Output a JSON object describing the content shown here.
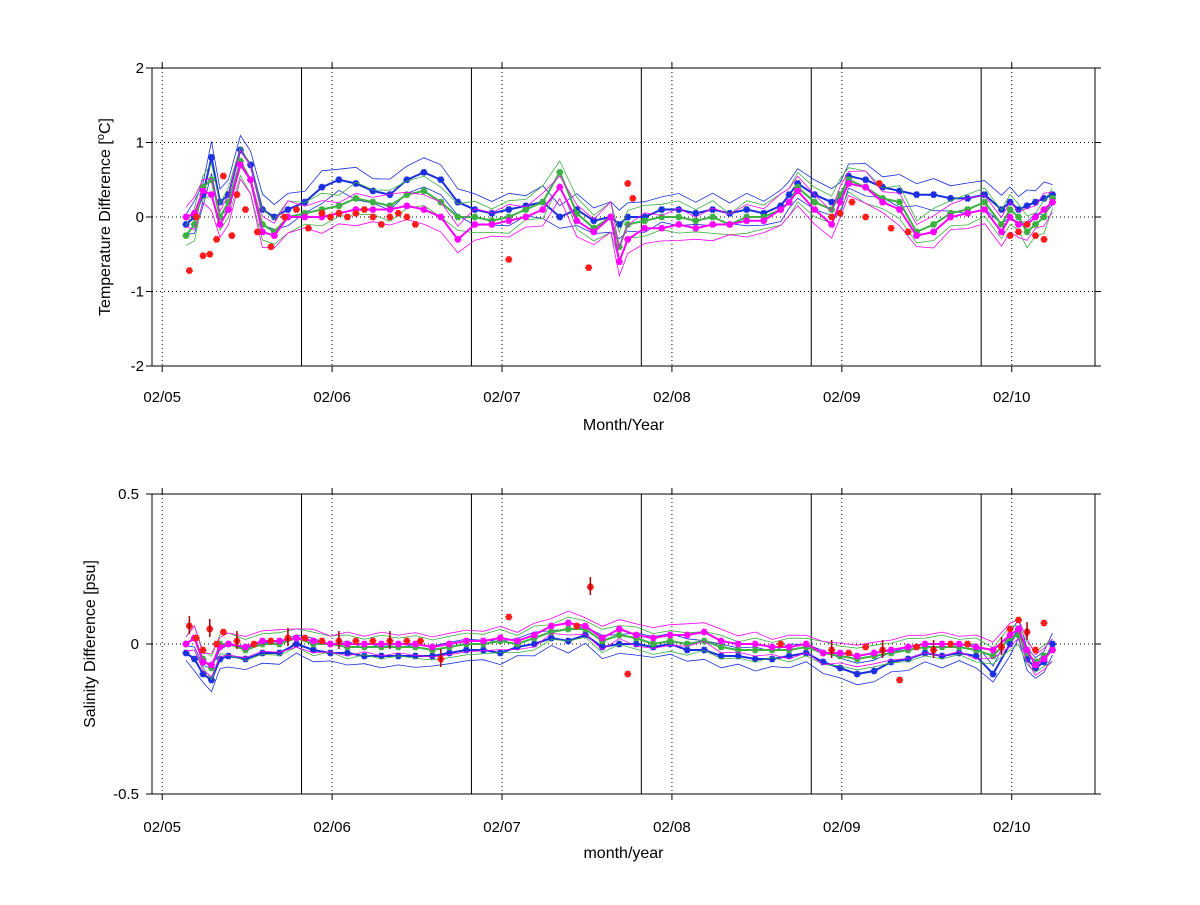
{
  "colors": {
    "blue": "#1a2fe0",
    "green": "#3cb043",
    "magenta": "#ff00ff",
    "red": "#ff1a1a",
    "darkred": "#a80000",
    "axis": "#000000"
  },
  "x_ticks": [
    "02/05",
    "02/06",
    "02/07",
    "02/08",
    "02/09",
    "02/10"
  ],
  "chart_data": [
    {
      "type": "line",
      "id": "temp",
      "title": "",
      "xlabel": "Month/Year",
      "ylabel": "Temperature Difference [",
      "ylabel_sup": "o",
      "ylabel_tail": "C]",
      "xlim": [
        2005.0,
        2010.55
      ],
      "ylim": [
        -2,
        2
      ],
      "yticks": [
        2,
        1,
        0,
        -1,
        -2
      ],
      "ytick_labels": [
        "2",
        "1",
        "0",
        "-1",
        "-2"
      ],
      "year_marks": [
        2005.88,
        2006.88,
        2007.88,
        2008.88,
        2009.88
      ],
      "grid": "dotted",
      "series": [
        {
          "color_key": "blue",
          "style": "marker-line",
          "x": [
            2005.2,
            2005.25,
            2005.3,
            2005.35,
            2005.4,
            2005.45,
            2005.52,
            2005.58,
            2005.65,
            2005.72,
            2005.8,
            2005.9,
            2006.0,
            2006.1,
            2006.2,
            2006.3,
            2006.4,
            2006.5,
            2006.6,
            2006.7,
            2006.8,
            2006.9,
            2007.0,
            2007.1,
            2007.2,
            2007.3,
            2007.4,
            2007.5,
            2007.6,
            2007.7,
            2007.75,
            2007.8,
            2007.9,
            2008.0,
            2008.1,
            2008.2,
            2008.3,
            2008.4,
            2008.5,
            2008.6,
            2008.7,
            2008.75,
            2008.8,
            2008.9,
            2009.0,
            2009.05,
            2009.1,
            2009.2,
            2009.3,
            2009.4,
            2009.5,
            2009.6,
            2009.7,
            2009.8,
            2009.9,
            2010.0,
            2010.05,
            2010.1,
            2010.15,
            2010.2,
            2010.25,
            2010.3
          ],
          "y": [
            -0.1,
            0.0,
            0.3,
            0.8,
            0.2,
            0.3,
            0.9,
            0.7,
            0.1,
            0.0,
            0.1,
            0.2,
            0.4,
            0.5,
            0.45,
            0.35,
            0.3,
            0.5,
            0.6,
            0.5,
            0.2,
            0.1,
            0.05,
            0.1,
            0.15,
            0.2,
            0.0,
            0.1,
            -0.05,
            0.0,
            -0.1,
            0.0,
            0.0,
            0.1,
            0.1,
            0.05,
            0.1,
            0.05,
            0.1,
            0.05,
            0.15,
            0.3,
            0.45,
            0.3,
            0.2,
            0.25,
            0.55,
            0.5,
            0.4,
            0.35,
            0.3,
            0.3,
            0.25,
            0.25,
            0.3,
            0.1,
            0.2,
            0.1,
            0.15,
            0.2,
            0.25,
            0.3
          ]
        },
        {
          "color_key": "green",
          "style": "marker-line",
          "x": [
            2005.2,
            2005.25,
            2005.3,
            2005.35,
            2005.4,
            2005.45,
            2005.52,
            2005.58,
            2005.65,
            2005.72,
            2005.8,
            2005.9,
            2006.0,
            2006.1,
            2006.2,
            2006.3,
            2006.4,
            2006.5,
            2006.6,
            2006.7,
            2006.8,
            2006.9,
            2007.0,
            2007.1,
            2007.2,
            2007.3,
            2007.4,
            2007.5,
            2007.6,
            2007.7,
            2007.75,
            2007.8,
            2007.9,
            2008.0,
            2008.1,
            2008.2,
            2008.3,
            2008.4,
            2008.5,
            2008.6,
            2008.7,
            2008.75,
            2008.8,
            2008.9,
            2009.0,
            2009.05,
            2009.1,
            2009.2,
            2009.3,
            2009.4,
            2009.5,
            2009.6,
            2009.7,
            2009.8,
            2009.9,
            2010.0,
            2010.05,
            2010.1,
            2010.15,
            2010.2,
            2010.25,
            2010.3
          ],
          "y": [
            -0.25,
            -0.1,
            0.4,
            0.5,
            0.0,
            0.2,
            0.75,
            0.5,
            -0.1,
            -0.2,
            0.0,
            0.05,
            0.1,
            0.15,
            0.25,
            0.2,
            0.15,
            0.3,
            0.35,
            0.2,
            0.0,
            0.0,
            -0.05,
            0.0,
            0.1,
            0.2,
            0.6,
            0.05,
            -0.15,
            0.0,
            -0.4,
            -0.1,
            -0.05,
            0.0,
            0.0,
            -0.05,
            0.0,
            -0.1,
            0.0,
            0.0,
            0.1,
            0.2,
            0.4,
            0.2,
            0.1,
            0.3,
            0.5,
            0.4,
            0.25,
            0.2,
            -0.2,
            -0.1,
            0.05,
            0.1,
            0.2,
            -0.1,
            0.1,
            0.0,
            -0.2,
            -0.1,
            0.0,
            0.25
          ]
        },
        {
          "color_key": "magenta",
          "style": "marker-line",
          "x": [
            2005.2,
            2005.25,
            2005.3,
            2005.35,
            2005.4,
            2005.45,
            2005.52,
            2005.58,
            2005.65,
            2005.72,
            2005.8,
            2005.9,
            2006.0,
            2006.1,
            2006.2,
            2006.3,
            2006.4,
            2006.5,
            2006.6,
            2006.7,
            2006.8,
            2006.9,
            2007.0,
            2007.1,
            2007.2,
            2007.3,
            2007.4,
            2007.5,
            2007.6,
            2007.7,
            2007.75,
            2007.8,
            2007.9,
            2008.0,
            2008.1,
            2008.2,
            2008.3,
            2008.4,
            2008.5,
            2008.6,
            2008.7,
            2008.75,
            2008.8,
            2008.9,
            2009.0,
            2009.05,
            2009.1,
            2009.2,
            2009.3,
            2009.4,
            2009.5,
            2009.6,
            2009.7,
            2009.8,
            2009.9,
            2010.0,
            2010.05,
            2010.1,
            2010.15,
            2010.2,
            2010.25,
            2010.3
          ],
          "y": [
            0.0,
            0.05,
            0.35,
            0.3,
            -0.1,
            0.1,
            0.7,
            0.5,
            -0.2,
            -0.25,
            0.0,
            0.0,
            0.0,
            0.05,
            0.1,
            0.1,
            0.1,
            0.15,
            0.1,
            0.0,
            -0.3,
            -0.1,
            -0.1,
            -0.05,
            0.0,
            0.1,
            0.4,
            -0.05,
            -0.2,
            0.0,
            -0.6,
            -0.3,
            -0.15,
            -0.15,
            -0.1,
            -0.15,
            -0.1,
            -0.1,
            -0.05,
            -0.05,
            0.1,
            0.2,
            0.35,
            0.1,
            -0.1,
            0.2,
            0.45,
            0.4,
            0.2,
            0.1,
            -0.25,
            -0.2,
            0.0,
            0.05,
            0.1,
            -0.2,
            0.0,
            -0.1,
            -0.1,
            0.0,
            0.1,
            0.2
          ]
        },
        {
          "color_key": "red",
          "style": "markers",
          "x": [
            2005.22,
            2005.26,
            2005.3,
            2005.34,
            2005.38,
            2005.42,
            2005.47,
            2005.5,
            2005.55,
            2005.62,
            2005.7,
            2005.78,
            2005.85,
            2005.92,
            2006.0,
            2006.05,
            2006.1,
            2006.15,
            2006.2,
            2006.25,
            2006.3,
            2006.35,
            2006.4,
            2006.45,
            2006.5,
            2006.55,
            2007.1,
            2007.57,
            2007.8,
            2007.83,
            2009.0,
            2009.05,
            2009.12,
            2009.2,
            2009.28,
            2009.35,
            2009.45,
            2010.05,
            2010.1,
            2010.15,
            2010.2,
            2010.25
          ],
          "y": [
            -0.72,
            0.0,
            -0.52,
            -0.5,
            -0.3,
            0.55,
            -0.25,
            0.3,
            0.1,
            -0.2,
            -0.4,
            0.0,
            0.1,
            -0.15,
            0.05,
            0.0,
            0.05,
            0.0,
            0.05,
            0.1,
            0.0,
            -0.1,
            0.0,
            0.05,
            0.0,
            -0.1,
            -0.57,
            -0.68,
            0.45,
            0.25,
            0.0,
            0.05,
            0.2,
            0.0,
            0.45,
            -0.15,
            -0.2,
            -0.25,
            -0.2,
            -0.1,
            -0.25,
            -0.3
          ]
        }
      ]
    },
    {
      "type": "line",
      "id": "salt",
      "title": "",
      "xlabel": "month/year",
      "ylabel": "Salinity Difference [psu]",
      "xlim": [
        2005.0,
        2010.55
      ],
      "ylim": [
        -0.5,
        0.5
      ],
      "yticks": [
        0.5,
        0,
        -0.5
      ],
      "ytick_labels": [
        "0.5",
        "0",
        "-0.5"
      ],
      "year_marks": [
        2005.88,
        2006.88,
        2007.88,
        2008.88,
        2009.88
      ],
      "grid": "dotted",
      "series": [
        {
          "color_key": "blue",
          "style": "marker-line",
          "x": [
            2005.2,
            2005.25,
            2005.3,
            2005.35,
            2005.4,
            2005.45,
            2005.55,
            2005.65,
            2005.75,
            2005.85,
            2005.95,
            2006.05,
            2006.15,
            2006.25,
            2006.35,
            2006.45,
            2006.55,
            2006.65,
            2006.75,
            2006.85,
            2006.95,
            2007.05,
            2007.15,
            2007.25,
            2007.35,
            2007.45,
            2007.55,
            2007.65,
            2007.75,
            2007.85,
            2007.95,
            2008.05,
            2008.15,
            2008.25,
            2008.35,
            2008.45,
            2008.55,
            2008.65,
            2008.75,
            2008.85,
            2008.95,
            2009.05,
            2009.15,
            2009.25,
            2009.35,
            2009.45,
            2009.55,
            2009.65,
            2009.75,
            2009.85,
            2009.95,
            2010.05,
            2010.1,
            2010.15,
            2010.2,
            2010.25,
            2010.3
          ],
          "y": [
            -0.03,
            -0.05,
            -0.1,
            -0.12,
            -0.05,
            -0.04,
            -0.05,
            -0.03,
            -0.03,
            0.0,
            -0.02,
            -0.03,
            -0.03,
            -0.04,
            -0.04,
            -0.04,
            -0.04,
            -0.04,
            -0.03,
            -0.02,
            -0.02,
            -0.03,
            -0.01,
            0.0,
            0.02,
            0.01,
            0.03,
            -0.01,
            0.0,
            0.0,
            -0.01,
            0.0,
            -0.02,
            -0.02,
            -0.04,
            -0.04,
            -0.05,
            -0.05,
            -0.04,
            -0.03,
            -0.06,
            -0.08,
            -0.1,
            -0.09,
            -0.06,
            -0.05,
            -0.03,
            -0.04,
            -0.03,
            -0.04,
            -0.1,
            0.0,
            0.05,
            -0.05,
            -0.08,
            -0.06,
            0.0
          ]
        },
        {
          "color_key": "green",
          "style": "marker-line",
          "x": [
            2005.2,
            2005.25,
            2005.3,
            2005.35,
            2005.4,
            2005.45,
            2005.55,
            2005.65,
            2005.75,
            2005.85,
            2005.95,
            2006.05,
            2006.15,
            2006.25,
            2006.35,
            2006.45,
            2006.55,
            2006.65,
            2006.75,
            2006.85,
            2006.95,
            2007.05,
            2007.15,
            2007.25,
            2007.35,
            2007.45,
            2007.55,
            2007.65,
            2007.75,
            2007.85,
            2007.95,
            2008.05,
            2008.15,
            2008.25,
            2008.35,
            2008.45,
            2008.55,
            2008.65,
            2008.75,
            2008.85,
            2008.95,
            2009.05,
            2009.15,
            2009.25,
            2009.35,
            2009.45,
            2009.55,
            2009.65,
            2009.75,
            2009.85,
            2009.95,
            2010.05,
            2010.1,
            2010.15,
            2010.2,
            2010.25,
            2010.3
          ],
          "y": [
            0.0,
            0.02,
            -0.05,
            -0.08,
            0.0,
            0.0,
            -0.02,
            0.0,
            0.0,
            0.02,
            0.0,
            0.0,
            -0.01,
            -0.01,
            -0.01,
            -0.01,
            -0.01,
            -0.02,
            -0.01,
            0.0,
            0.0,
            0.01,
            0.0,
            0.02,
            0.04,
            0.05,
            0.05,
            0.01,
            0.03,
            0.02,
            0.0,
            0.01,
            0.0,
            0.01,
            -0.01,
            -0.02,
            -0.02,
            -0.02,
            -0.02,
            -0.01,
            -0.03,
            -0.04,
            -0.05,
            -0.04,
            -0.03,
            -0.02,
            -0.01,
            -0.01,
            -0.01,
            -0.02,
            -0.04,
            0.02,
            0.03,
            -0.03,
            -0.06,
            -0.04,
            -0.02
          ]
        },
        {
          "color_key": "magenta",
          "style": "marker-line",
          "x": [
            2005.2,
            2005.25,
            2005.3,
            2005.35,
            2005.4,
            2005.45,
            2005.55,
            2005.65,
            2005.75,
            2005.85,
            2005.95,
            2006.05,
            2006.15,
            2006.25,
            2006.35,
            2006.45,
            2006.55,
            2006.65,
            2006.75,
            2006.85,
            2006.95,
            2007.05,
            2007.15,
            2007.25,
            2007.35,
            2007.45,
            2007.55,
            2007.65,
            2007.75,
            2007.85,
            2007.95,
            2008.05,
            2008.15,
            2008.25,
            2008.35,
            2008.45,
            2008.55,
            2008.65,
            2008.75,
            2008.85,
            2008.95,
            2009.05,
            2009.15,
            2009.25,
            2009.35,
            2009.45,
            2009.55,
            2009.65,
            2009.75,
            2009.85,
            2009.95,
            2010.05,
            2010.1,
            2010.15,
            2010.2,
            2010.25,
            2010.3
          ],
          "y": [
            0.0,
            0.02,
            -0.06,
            -0.07,
            -0.01,
            0.0,
            -0.01,
            0.01,
            0.01,
            0.02,
            0.01,
            0.0,
            0.0,
            0.0,
            0.0,
            0.0,
            0.0,
            -0.01,
            0.0,
            0.01,
            0.01,
            0.02,
            0.01,
            0.03,
            0.06,
            0.07,
            0.06,
            0.02,
            0.05,
            0.03,
            0.02,
            0.03,
            0.03,
            0.04,
            0.01,
            0.0,
            0.0,
            -0.01,
            -0.01,
            0.0,
            -0.03,
            -0.03,
            -0.04,
            -0.03,
            -0.02,
            -0.01,
            0.0,
            0.0,
            0.0,
            -0.01,
            -0.02,
            0.03,
            0.05,
            -0.02,
            -0.07,
            -0.05,
            -0.02
          ]
        },
        {
          "color_key": "red",
          "style": "markers",
          "x": [
            2005.22,
            2005.26,
            2005.3,
            2005.34,
            2005.38,
            2005.42,
            2005.5,
            2005.6,
            2005.7,
            2005.8,
            2005.9,
            2006.0,
            2006.1,
            2006.2,
            2006.3,
            2006.4,
            2006.5,
            2006.58,
            2006.7,
            2007.1,
            2007.5,
            2007.58,
            2007.8,
            2008.7,
            2009.0,
            2009.1,
            2009.2,
            2009.3,
            2009.4,
            2009.5,
            2009.6,
            2009.7,
            2009.8,
            2010.0,
            2010.05,
            2010.1,
            2010.15,
            2010.2,
            2010.25
          ],
          "y": [
            0.06,
            0.02,
            -0.02,
            0.05,
            0.0,
            0.04,
            0.01,
            0.0,
            0.01,
            0.02,
            0.02,
            0.01,
            0.01,
            0.01,
            0.01,
            0.01,
            0.01,
            0.01,
            -0.05,
            0.09,
            0.06,
            0.19,
            -0.1,
            0.0,
            -0.02,
            -0.03,
            -0.01,
            -0.02,
            -0.12,
            -0.01,
            -0.02,
            0.0,
            0.0,
            -0.01,
            0.05,
            0.08,
            0.04,
            -0.02,
            0.07
          ]
        }
      ]
    }
  ]
}
